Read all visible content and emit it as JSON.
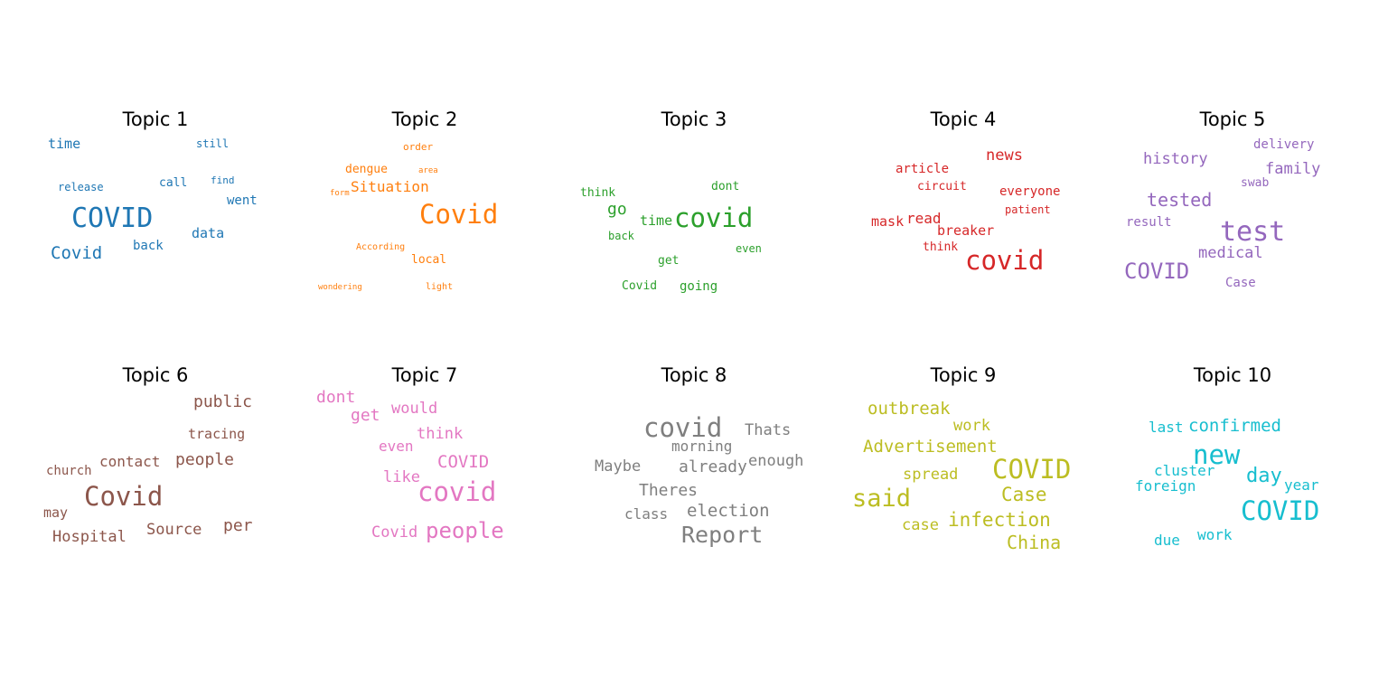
{
  "topics": [
    {
      "title": "Topic 1",
      "color": "#1f77b4",
      "words": [
        "time",
        "still",
        "release",
        "call",
        "find",
        "went",
        "COVID",
        "data",
        "Covid",
        "back"
      ]
    },
    {
      "title": "Topic 2",
      "color": "#ff7f0e",
      "words": [
        "order",
        "dengue",
        "area",
        "Situation",
        "form",
        "Covid",
        "According",
        "local",
        "wondering",
        "light"
      ]
    },
    {
      "title": "Topic 3",
      "color": "#2ca02c",
      "words": [
        "think",
        "dont",
        "go",
        "time",
        "covid",
        "back",
        "even",
        "get",
        "Covid",
        "going"
      ]
    },
    {
      "title": "Topic 4",
      "color": "#d62728",
      "words": [
        "news",
        "article",
        "circuit",
        "everyone",
        "patient",
        "mask",
        "read",
        "breaker",
        "think",
        "covid"
      ]
    },
    {
      "title": "Topic 5",
      "color": "#9467bd",
      "words": [
        "delivery",
        "history",
        "family",
        "swab",
        "tested",
        "result",
        "test",
        "medical",
        "COVID",
        "Case"
      ]
    },
    {
      "title": "Topic 6",
      "color": "#8c564b",
      "words": [
        "public",
        "tracing",
        "church",
        "contact",
        "people",
        "Covid",
        "may",
        "Source",
        "per",
        "Hospital"
      ]
    },
    {
      "title": "Topic 7",
      "color": "#e377c2",
      "words": [
        "dont",
        "would",
        "get",
        "think",
        "even",
        "COVID",
        "like",
        "covid",
        "Covid",
        "people"
      ]
    },
    {
      "title": "Topic 8",
      "color": "#7f7f7f",
      "words": [
        "covid",
        "Thats",
        "morning",
        "enough",
        "Maybe",
        "already",
        "Theres",
        "class",
        "election",
        "Report"
      ]
    },
    {
      "title": "Topic 9",
      "color": "#bcbd22",
      "words": [
        "outbreak",
        "work",
        "Advertisement",
        "COVID",
        "spread",
        "said",
        "Case",
        "case",
        "infection",
        "China"
      ]
    },
    {
      "title": "Topic 10",
      "color": "#17becf",
      "words": [
        "last",
        "confirmed",
        "new",
        "cluster",
        "day",
        "year",
        "foreign",
        "COVID",
        "due",
        "work"
      ]
    }
  ]
}
